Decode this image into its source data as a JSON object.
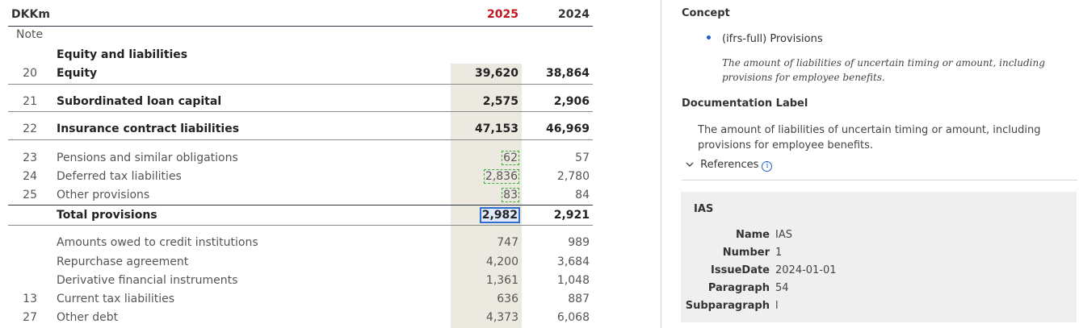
{
  "table": {
    "currency_label": "DKKm",
    "col_current": "2025",
    "col_prior": "2024",
    "note_header": "Note",
    "section_title": "Equity and liabilities",
    "rows": [
      {
        "note": "20",
        "label": "Equity",
        "v2025": "39,620",
        "v2024": "38,864"
      },
      {
        "note": "21",
        "label": "Subordinated loan capital",
        "v2025": "2,575",
        "v2024": "2,906"
      },
      {
        "note": "22",
        "label": "Insurance contract liabilities",
        "v2025": "47,153",
        "v2024": "46,969"
      },
      {
        "note": "23",
        "label": "Pensions and similar obligations",
        "v2025": "62",
        "v2024": "57"
      },
      {
        "note": "24",
        "label": "Deferred tax liabilities",
        "v2025": "2,836",
        "v2024": "2,780"
      },
      {
        "note": "25",
        "label": "Other provisions",
        "v2025": "83",
        "v2024": "84"
      },
      {
        "note": "",
        "label": "Total provisions",
        "v2025": "2,982",
        "v2024": "2,921"
      },
      {
        "note": "",
        "label": "Amounts owed to credit institutions",
        "v2025": "747",
        "v2024": "989"
      },
      {
        "note": "",
        "label": "Repurchase agreement",
        "v2025": "4,200",
        "v2024": "3,684"
      },
      {
        "note": "",
        "label": "Derivative financial instruments",
        "v2025": "1,361",
        "v2024": "1,048"
      },
      {
        "note": "13",
        "label": "Current tax liabilities",
        "v2025": "636",
        "v2024": "887"
      },
      {
        "note": "27",
        "label": "Other debt",
        "v2025": "4,373",
        "v2024": "6,068"
      }
    ],
    "colors": {
      "current_year": "#c0141e",
      "shade": "#ece9e1",
      "tag_outline": "#3fae3f",
      "selected_outline": "#2e6fcf"
    }
  },
  "panel": {
    "concept_heading": "Concept",
    "concept_name": "(ifrs-full) Provisions",
    "concept_definition": "The amount of liabilities of uncertain timing or amount, including provisions for employee benefits.",
    "doc_label_heading": "Documentation Label",
    "doc_label_text": "The amount of liabilities of uncertain timing or amount, including provisions for employee benefits.",
    "references_label": "References",
    "reference": {
      "title": "IAS",
      "fields": [
        {
          "key": "Name",
          "value": "IAS"
        },
        {
          "key": "Number",
          "value": "1"
        },
        {
          "key": "IssueDate",
          "value": "2024-01-01"
        },
        {
          "key": "Paragraph",
          "value": "54"
        },
        {
          "key": "Subparagraph",
          "value": "l"
        }
      ]
    },
    "icons": {
      "bullet": "bullet-icon",
      "chevron": "chevron-down-icon",
      "info": "info-icon"
    }
  }
}
